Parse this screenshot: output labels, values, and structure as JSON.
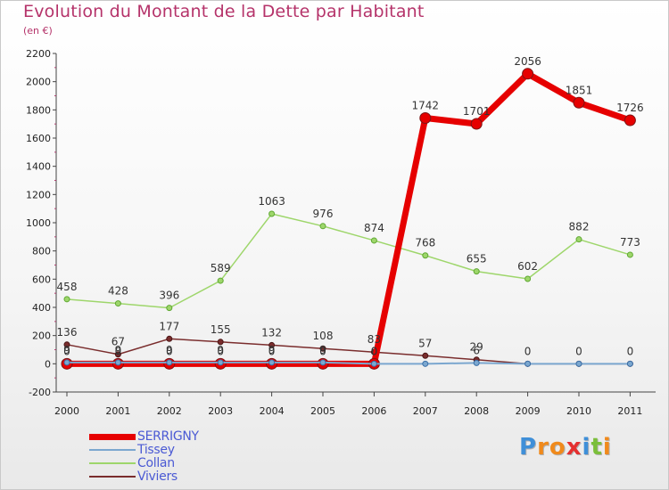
{
  "header": {
    "title": "Evolution du Montant de la Dette par Habitant",
    "subtitle": "(en €)"
  },
  "colors": {
    "title": "#b5336a",
    "legend_text": "#4b5ad4",
    "axis": "#555555"
  },
  "logo": {
    "text": "Proxiti",
    "letters": [
      {
        "ch": "P",
        "color": "#3f8fd8"
      },
      {
        "ch": "r",
        "color": "#f08a1c"
      },
      {
        "ch": "o",
        "color": "#f08a1c"
      },
      {
        "ch": "x",
        "color": "#e53030"
      },
      {
        "ch": "i",
        "color": "#3f8fd8"
      },
      {
        "ch": "t",
        "color": "#7bbf3a"
      },
      {
        "ch": "i",
        "color": "#f08a1c"
      }
    ]
  },
  "chart_data": {
    "type": "line",
    "title": "Evolution du Montant de la Dette par Habitant",
    "subtitle": "(en €)",
    "x": [
      "2000",
      "2001",
      "2002",
      "2003",
      "2004",
      "2005",
      "2006",
      "2007",
      "2008",
      "2009",
      "2010",
      "2011"
    ],
    "ylim": [
      -200,
      2200
    ],
    "yticks": [
      -200,
      0,
      200,
      400,
      600,
      800,
      1000,
      1200,
      1400,
      1600,
      1800,
      2000,
      2200
    ],
    "grid": false,
    "legend_position": "bottom-left",
    "series": [
      {
        "name": "SERRIGNY",
        "color": "#e60000",
        "values": [
          0,
          0,
          0,
          0,
          0,
          0,
          0,
          1742,
          1701,
          2056,
          1851,
          1726
        ],
        "labels": [
          "0",
          "0",
          "0",
          "0",
          "0",
          "0",
          "0",
          "1742",
          "1701",
          "2056",
          "1851",
          "1726"
        ]
      },
      {
        "name": "Tissey",
        "color": "#7ba7cf",
        "values": [
          9,
          9,
          9,
          9,
          9,
          9,
          0,
          0,
          6,
          0,
          0,
          0
        ],
        "labels": [
          "9",
          "9",
          "9",
          "9",
          "9",
          "9",
          "0",
          "",
          "6",
          "",
          "",
          ""
        ]
      },
      {
        "name": "Collan",
        "color": "#9ed66b",
        "values": [
          458,
          428,
          396,
          589,
          1063,
          976,
          874,
          768,
          655,
          602,
          882,
          773
        ],
        "labels": [
          "458",
          "428",
          "396",
          "589",
          "1063",
          "976",
          "874",
          "768",
          "655",
          "602",
          "882",
          "773"
        ]
      },
      {
        "name": "Viviers",
        "color": "#7a2d2d",
        "values": [
          136,
          67,
          177,
          155,
          132,
          108,
          83,
          57,
          29,
          0,
          0,
          0
        ],
        "labels": [
          "136",
          "67",
          "177",
          "155",
          "132",
          "108",
          "83",
          "57",
          "29",
          "0",
          "0",
          "0"
        ]
      }
    ]
  }
}
